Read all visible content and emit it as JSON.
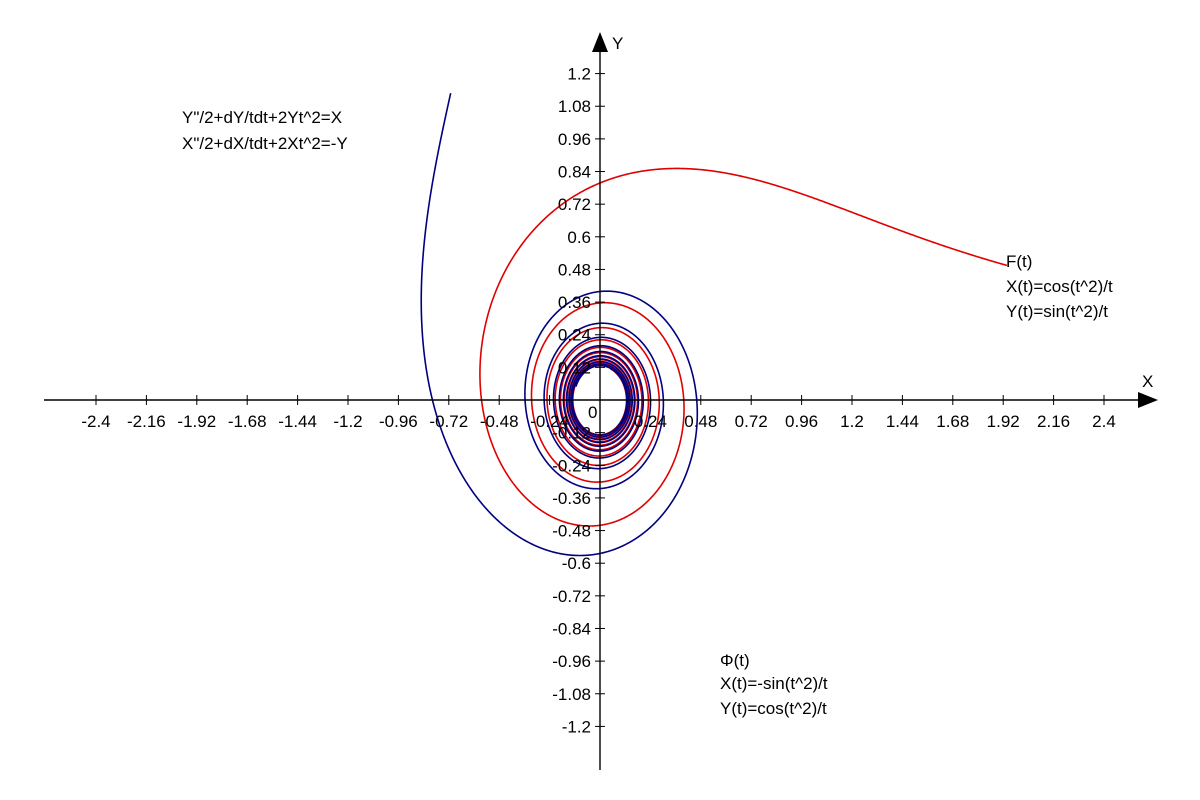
{
  "chart_data": {
    "type": "line",
    "title": "",
    "xlabel": "X",
    "ylabel": "Y",
    "xlim": [
      -2.64,
      2.64
    ],
    "ylim": [
      -1.38,
      1.38
    ],
    "grid": false,
    "x_ticks": [
      "-2.4",
      "-2.16",
      "-1.92",
      "-1.68",
      "-1.44",
      "-1.2",
      "-0.96",
      "-0.72",
      "-0.48",
      "-0.24",
      "0",
      "0.24",
      "0.48",
      "0.72",
      "0.96",
      "1.2",
      "1.44",
      "1.68",
      "1.92",
      "2.16",
      "2.4"
    ],
    "y_ticks": [
      "1.2",
      "1.08",
      "0.96",
      "0.84",
      "0.72",
      "0.6",
      "0.48",
      "0.36",
      "0.24",
      "0.12",
      "-0.12",
      "-0.24",
      "-0.36",
      "-0.48",
      "-0.6",
      "-0.72",
      "-0.84",
      "-0.96",
      "-1.08",
      "-1.2"
    ],
    "equations": [
      "Y\"/2+dY/tdt+2Yt^2=X",
      "X\"/2+dX/tdt+2Xt^2=-Y"
    ],
    "series": [
      {
        "name": "F(t)",
        "formula_x": "X(t)=cos(t^2)/t",
        "formula_y": "Y(t)=sin(t^2)/t",
        "color": "#e00000",
        "t_range": [
          0.5,
          8.0
        ]
      },
      {
        "name": "Φ(t)",
        "formula_x": "X(t)=-sin(t^2)/t",
        "formula_y": "Y(t)=cos(t^2)/t",
        "color": "#000080",
        "t_range": [
          0.75,
          8.0
        ]
      }
    ]
  }
}
